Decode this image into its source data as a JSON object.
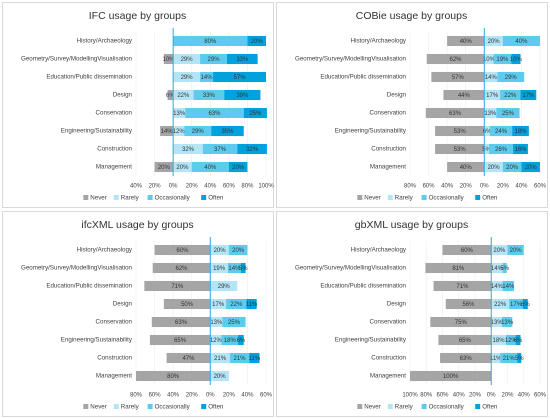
{
  "chart_data": [
    {
      "type": "bar",
      "title": "IFC usage by groups",
      "categories": [
        "History/Archaeology",
        "Geometry/Survey/ModellingVisualisation",
        "Education/Public dissemination",
        "Design",
        "Conservation",
        "Engineering/Sustainability",
        "Construction",
        "Management"
      ],
      "series": [
        {
          "name": "Never",
          "color": "#a5a5a5",
          "values": [
            null,
            10,
            null,
            6,
            null,
            14,
            null,
            20
          ],
          "value_labels": [
            null,
            "10%",
            null,
            "6%",
            null,
            "14%",
            null,
            "20%"
          ]
        },
        {
          "name": "Rarely",
          "color": "#b4e5f7",
          "values": [
            null,
            29,
            29,
            22,
            13,
            12,
            32,
            20
          ],
          "value_labels": [
            null,
            "29%",
            "29%",
            "22%",
            "13%",
            "12%",
            "32%",
            "20%"
          ]
        },
        {
          "name": "Occasionally",
          "color": "#5ccbee",
          "values": [
            80,
            29,
            14,
            33,
            63,
            29,
            37,
            40
          ],
          "value_labels": [
            "80%",
            "29%",
            "14%",
            "33%",
            "63%",
            "29%",
            "37%",
            "40%"
          ]
        },
        {
          "name": "Often",
          "color": "#00a2de",
          "values": [
            20,
            33,
            57,
            39,
            25,
            35,
            32,
            20
          ],
          "value_labels": [
            "20%",
            "33%",
            "57%",
            "39%",
            "25%",
            "35%",
            "32%",
            "20%"
          ]
        }
      ],
      "xlim": [
        -40,
        100
      ],
      "xticks": [
        {
          "value": -40,
          "label": "40%"
        },
        {
          "value": -20,
          "label": "20%"
        },
        {
          "value": 0,
          "label": "0%"
        },
        {
          "value": 20,
          "label": "20%"
        },
        {
          "value": 40,
          "label": "40%"
        },
        {
          "value": 60,
          "label": "60%"
        },
        {
          "value": 80,
          "label": "80%"
        },
        {
          "value": 100,
          "label": "100%"
        }
      ],
      "grid": true
    },
    {
      "type": "bar",
      "title": "COBie usage by groups",
      "categories": [
        "History/Archaeology",
        "Geometry/Survey/ModellingVisualisation",
        "Education/Public dissemination",
        "Design",
        "Conservation",
        "Engineering/Sustainability",
        "Construction",
        "Management"
      ],
      "series": [
        {
          "name": "Never",
          "color": "#a5a5a5",
          "values": [
            40,
            62,
            57,
            44,
            63,
            53,
            53,
            40
          ],
          "value_labels": [
            "40%",
            "62%",
            "57%",
            "44%",
            "63%",
            "53%",
            "53%",
            "40%"
          ]
        },
        {
          "name": "Rarely",
          "color": "#b4e5f7",
          "values": [
            20,
            10,
            14,
            17,
            13,
            6,
            5,
            20
          ],
          "value_labels": [
            "20%",
            "10%",
            "14%",
            "17%",
            "13%",
            "6%",
            "5%",
            "20%"
          ]
        },
        {
          "name": "Occasionally",
          "color": "#5ccbee",
          "values": [
            40,
            19,
            29,
            22,
            25,
            24,
            26,
            20
          ],
          "value_labels": [
            "40%",
            "19%",
            "29%",
            "22%",
            "25%",
            "24%",
            "26%",
            "20%"
          ]
        },
        {
          "name": "Often",
          "color": "#00a2de",
          "values": [
            null,
            10,
            null,
            17,
            null,
            18,
            16,
            20
          ],
          "value_labels": [
            null,
            "10%",
            null,
            "17%",
            null,
            "18%",
            "16%",
            "20%"
          ]
        }
      ],
      "xlim": [
        -80,
        60
      ],
      "xticks": [
        {
          "value": -80,
          "label": "80%"
        },
        {
          "value": -60,
          "label": "60%"
        },
        {
          "value": -40,
          "label": "40%"
        },
        {
          "value": -20,
          "label": "20%"
        },
        {
          "value": 0,
          "label": "0%"
        },
        {
          "value": 20,
          "label": "20%"
        },
        {
          "value": 40,
          "label": "40%"
        },
        {
          "value": 60,
          "label": "60%"
        }
      ],
      "grid": true
    },
    {
      "type": "bar",
      "title": "ifcXML usage by groups",
      "categories": [
        "History/Archaeology",
        "Geometry/Survey/ModellingVisualisation",
        "Education/Public dissemination",
        "Design",
        "Conservation",
        "Engineering/Sustainability",
        "Construction",
        "Management"
      ],
      "series": [
        {
          "name": "Never",
          "color": "#a5a5a5",
          "values": [
            60,
            62,
            71,
            50,
            63,
            65,
            47,
            80
          ],
          "value_labels": [
            "60%",
            "62%",
            "71%",
            "50%",
            "63%",
            "65%",
            "47%",
            "80%"
          ]
        },
        {
          "name": "Rarely",
          "color": "#b4e5f7",
          "values": [
            20,
            19,
            29,
            17,
            13,
            12,
            21,
            20
          ],
          "value_labels": [
            "20%",
            "19%",
            "29%",
            "17%",
            "13%",
            "12%",
            "21%",
            "20%"
          ]
        },
        {
          "name": "Occasionally",
          "color": "#5ccbee",
          "values": [
            20,
            14,
            null,
            22,
            25,
            18,
            21,
            null
          ],
          "value_labels": [
            "20%",
            "14%",
            null,
            "22%",
            "25%",
            "18%",
            "21%",
            null
          ]
        },
        {
          "name": "Often",
          "color": "#00a2de",
          "values": [
            null,
            5,
            null,
            11,
            null,
            6,
            11,
            null
          ],
          "value_labels": [
            null,
            "5%",
            null,
            "11%",
            null,
            "6%",
            "11%",
            null
          ]
        }
      ],
      "xlim": [
        -80,
        60
      ],
      "xticks": [
        {
          "value": -80,
          "label": "80%"
        },
        {
          "value": -60,
          "label": "60%"
        },
        {
          "value": -40,
          "label": "40%"
        },
        {
          "value": -20,
          "label": "20%"
        },
        {
          "value": 0,
          "label": "0%"
        },
        {
          "value": 20,
          "label": "20%"
        },
        {
          "value": 40,
          "label": "40%"
        },
        {
          "value": 60,
          "label": "60%"
        }
      ],
      "grid": true
    },
    {
      "type": "bar",
      "title": "gbXML usage by groups",
      "categories": [
        "History/Archaeology",
        "Geometry/Survey/ModellingVisualisation",
        "Education/Public dissemination",
        "Design",
        "Conservation",
        "Engineering/Sustainability",
        "Construction",
        "Management"
      ],
      "series": [
        {
          "name": "Never",
          "color": "#a5a5a5",
          "values": [
            60,
            81,
            71,
            56,
            75,
            65,
            63,
            100
          ],
          "value_labels": [
            "60%",
            "81%",
            "71%",
            "56%",
            "75%",
            "65%",
            "63%",
            "100%"
          ]
        },
        {
          "name": "Rarely",
          "color": "#b4e5f7",
          "values": [
            20,
            14,
            14,
            22,
            13,
            18,
            11,
            null
          ],
          "value_labels": [
            "20%",
            "14%",
            "14%",
            "22%",
            "13%",
            "18%",
            "11%",
            null
          ]
        },
        {
          "name": "Occasionally",
          "color": "#5ccbee",
          "values": [
            20,
            5,
            14,
            17,
            13,
            12,
            21,
            null
          ],
          "value_labels": [
            "20%",
            "5%",
            "14%",
            "17%",
            "13%",
            "12%",
            "21%",
            null
          ]
        },
        {
          "name": "Often",
          "color": "#00a2de",
          "values": [
            null,
            null,
            null,
            6,
            null,
            6,
            5,
            null
          ],
          "value_labels": [
            null,
            null,
            null,
            "6%",
            null,
            "6%",
            "5%",
            null
          ]
        }
      ],
      "xlim": [
        -100,
        60
      ],
      "xticks": [
        {
          "value": -100,
          "label": "100%"
        },
        {
          "value": -80,
          "label": "80%"
        },
        {
          "value": -60,
          "label": "60%"
        },
        {
          "value": -40,
          "label": "40%"
        },
        {
          "value": -20,
          "label": "20%"
        },
        {
          "value": 0,
          "label": "0%"
        },
        {
          "value": 20,
          "label": "20%"
        },
        {
          "value": 40,
          "label": "40%"
        },
        {
          "value": 60,
          "label": "60%"
        }
      ],
      "grid": true
    }
  ]
}
